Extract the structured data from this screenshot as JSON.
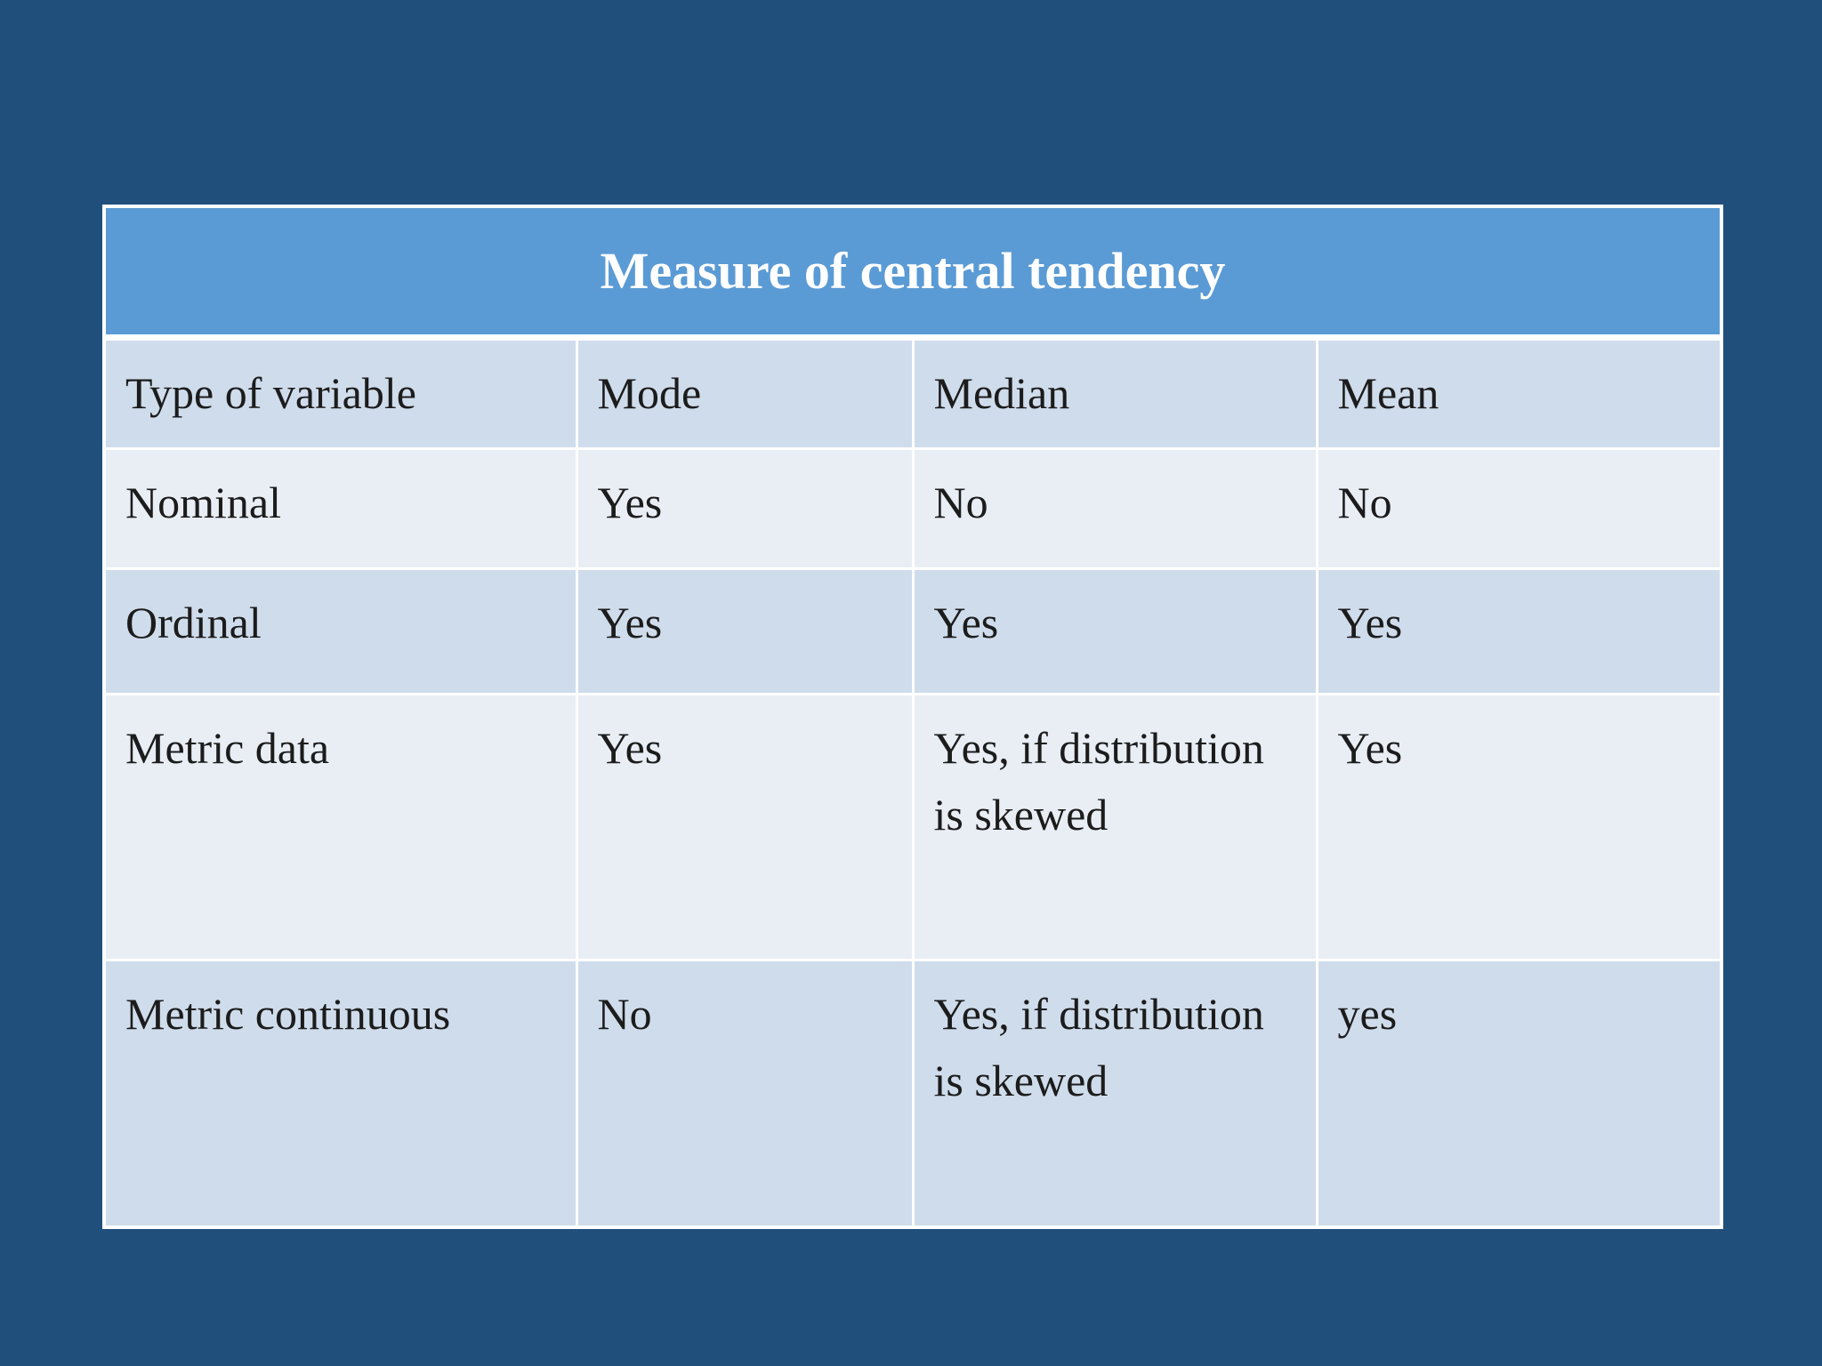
{
  "slide": {
    "background_color": "#204F7C"
  },
  "table": {
    "title": "Measure of central tendency",
    "title_bar_color": "#5B9BD5",
    "title_text_color": "#FFFFFF",
    "band_dark_color": "#CFDCEB",
    "band_light_color": "#E9EEF5",
    "body_text_color": "#1C1C1C",
    "columns": [
      "Type of variable",
      "Mode",
      "Median",
      "Mean"
    ],
    "rows": [
      {
        "cells": [
          "Nominal",
          "Yes",
          "No",
          "No"
        ]
      },
      {
        "cells": [
          "Ordinal",
          "Yes",
          "Yes",
          "Yes"
        ]
      },
      {
        "cells": [
          "Metric data",
          "Yes",
          "Yes, if distribution is skewed",
          "Yes"
        ]
      },
      {
        "cells": [
          "Metric continuous",
          "No",
          "Yes, if distribution is skewed",
          "yes"
        ]
      }
    ]
  }
}
